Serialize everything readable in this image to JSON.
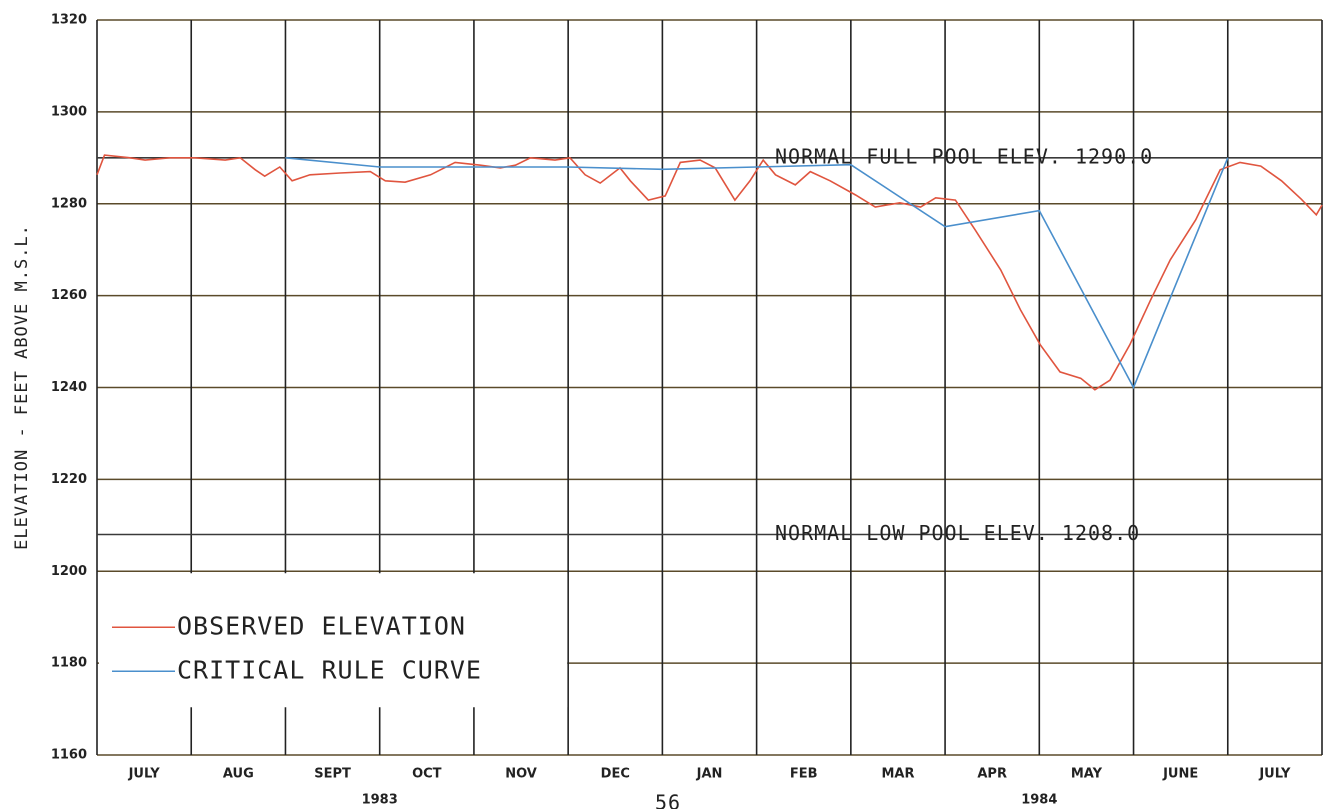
{
  "chart_data": {
    "type": "line",
    "y_label": "ELEVATION - FEET ABOVE M.S.L.",
    "categories": [
      "JULY",
      "AUG",
      "SEPT",
      "OCT",
      "NOV",
      "DEC",
      "JAN",
      "FEB",
      "MAR",
      "APR",
      "MAY",
      "JUNE",
      "JULY"
    ],
    "year_labels": [
      "1983",
      "1984"
    ],
    "xlim": [
      0,
      13
    ],
    "ylim": [
      1160,
      1320
    ],
    "yticks": [
      1160,
      1180,
      1200,
      1220,
      1240,
      1260,
      1280,
      1300,
      1320
    ],
    "grid": true,
    "legend": "lower left",
    "reference_lines": [
      {
        "value": 1290,
        "label": "NORMAL FULL POOL ELEV. 1290.0"
      },
      {
        "value": 1208,
        "label": "NORMAL LOW POOL ELEV. 1208.0"
      }
    ],
    "series": [
      {
        "name": "OBSERVED ELEVATION",
        "color": "#e0553f",
        "x": [
          0,
          0.08,
          0.35,
          0.51,
          0.77,
          1.04,
          1.36,
          1.52,
          1.68,
          1.78,
          1.94,
          2.07,
          2.26,
          2.58,
          2.9,
          3.06,
          3.27,
          3.54,
          3.8,
          4.07,
          4.28,
          4.44,
          4.6,
          4.86,
          5.02,
          5.18,
          5.34,
          5.55,
          5.66,
          5.85,
          6.03,
          6.19,
          6.4,
          6.56,
          6.77,
          6.93,
          7.07,
          7.2,
          7.41,
          7.57,
          7.78,
          8.05,
          8.26,
          8.52,
          8.74,
          8.9,
          9.11,
          9.32,
          9.59,
          9.8,
          10.01,
          10.22,
          10.44,
          10.59,
          10.75,
          10.96,
          11.18,
          11.39,
          11.66,
          11.92,
          12.13,
          12.35,
          12.57,
          12.78,
          12.94,
          13
        ],
        "values": [
          1286.3,
          1290.6,
          1290,
          1289.5,
          1290,
          1290,
          1289.5,
          1290,
          1287.4,
          1286,
          1288,
          1285,
          1286.3,
          1286.7,
          1287,
          1285,
          1284.7,
          1286.3,
          1289,
          1288.4,
          1287.8,
          1288.4,
          1290,
          1289.5,
          1290,
          1286.3,
          1284.5,
          1287.8,
          1285,
          1280.8,
          1281.7,
          1289,
          1289.5,
          1287.8,
          1280.8,
          1285,
          1289.5,
          1286.3,
          1284.1,
          1287,
          1285,
          1281.9,
          1279.3,
          1280.2,
          1279.3,
          1281.3,
          1280.8,
          1274.3,
          1265.6,
          1256.9,
          1249.3,
          1243.4,
          1242,
          1239.5,
          1241.6,
          1249.3,
          1259,
          1267.8,
          1276.5,
          1287.4,
          1289,
          1288.2,
          1285,
          1281,
          1277.6,
          1279.7
        ]
      },
      {
        "name": "CRITICAL RULE CURVE",
        "color": "#4a8fcc",
        "x": [
          2,
          3,
          5,
          6,
          7,
          8,
          9,
          10,
          11,
          12
        ],
        "values": [
          1290,
          1288,
          1288,
          1287.5,
          1288,
          1288.5,
          1275,
          1278.5,
          1240,
          1290
        ]
      }
    ]
  },
  "page_number": "56"
}
